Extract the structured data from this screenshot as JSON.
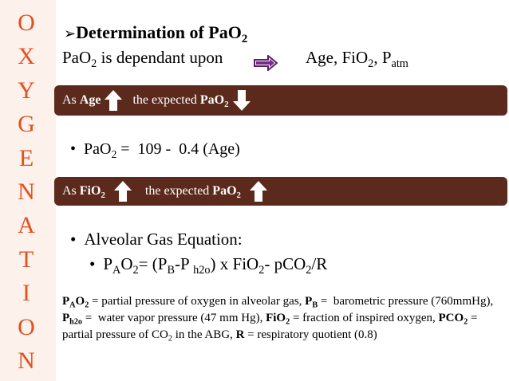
{
  "sidebar": [
    "O",
    "X",
    "Y",
    "G",
    "E",
    "N",
    "A",
    "T",
    "I",
    "O",
    "N"
  ],
  "heading": [
    {
      "b": "Determination of PaO"
    },
    {
      "bsub": "2"
    }
  ],
  "line": {
    "left": [
      {
        "t": "PaO"
      },
      {
        "sub": "2"
      },
      {
        "t": " is dependant upon"
      }
    ],
    "right": [
      {
        "t": "Age, FiO"
      },
      {
        "sub": "2"
      },
      {
        "t": ", P"
      },
      {
        "sub": "atm"
      }
    ]
  },
  "banner1": {
    "part1": [
      {
        "t": "As "
      },
      {
        "b": "Age"
      }
    ],
    "part2": [
      {
        "t": "  the expected "
      },
      {
        "b": "PaO"
      },
      {
        "bsub": "2"
      }
    ]
  },
  "bullet1": [
    {
      "t": "PaO"
    },
    {
      "sub": "2"
    },
    {
      "t": " =  109 -  0.4 (Age)"
    }
  ],
  "banner2": {
    "part1": [
      {
        "t": "As "
      },
      {
        "b": "FiO"
      },
      {
        "bsub": "2"
      }
    ],
    "part2": [
      {
        "t": "   the expected "
      },
      {
        "b": "PaO"
      },
      {
        "bsub": "2"
      }
    ]
  },
  "bullet2": [
    {
      "t": "Alveolar Gas Equation:"
    }
  ],
  "bullet3": [
    {
      "t": "P"
    },
    {
      "sub": "A"
    },
    {
      "t": "O"
    },
    {
      "sub": "2"
    },
    {
      "t": "= (P"
    },
    {
      "sub": "B"
    },
    {
      "t": "-P "
    },
    {
      "sub": "h2o"
    },
    {
      "t": ") x FiO"
    },
    {
      "sub": "2"
    },
    {
      "t": "- pCO"
    },
    {
      "sub": "2"
    },
    {
      "t": "/R"
    }
  ],
  "footnote": [
    {
      "b": "P"
    },
    {
      "bsub": "A"
    },
    {
      "b": "O"
    },
    {
      "bsub": "2"
    },
    {
      "t": " = partial pressure of oxygen in alveolar gas, "
    },
    {
      "b": "P"
    },
    {
      "bsub": "B"
    },
    {
      "t": " =  barometric pressure (760mmHg), "
    },
    {
      "b": "P"
    },
    {
      "bsub": "h2o"
    },
    {
      "t": " =  water vapor pressure (47 mm Hg), "
    },
    {
      "b": "FiO"
    },
    {
      "bsub": "2"
    },
    {
      "t": " = fraction of inspired oxygen, "
    },
    {
      "b": "PCO"
    },
    {
      "bsub": "2"
    },
    {
      "t": " = partial pressure of CO"
    },
    {
      "sub": "2"
    },
    {
      "t": " in the ABG, "
    },
    {
      "b": "R"
    },
    {
      "t": " = respiratory quotient (0.8)"
    }
  ]
}
